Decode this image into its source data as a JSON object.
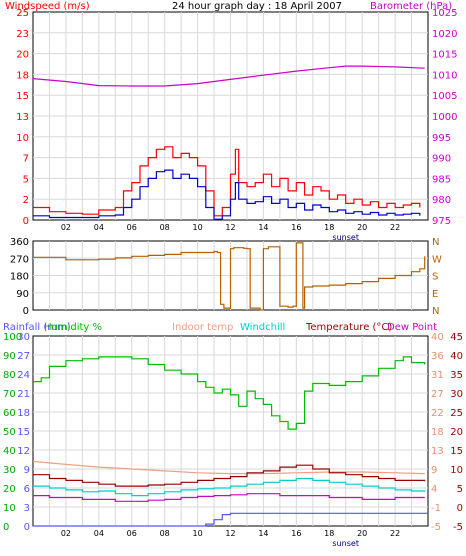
{
  "header": {
    "title": "24 hour graph day : 18 April 2007",
    "left_label": "Windspeed (m/s)",
    "right_label": "Barometer (hPa)"
  },
  "colors": {
    "windspeed": "#ff0000",
    "windavg": "#0000cc",
    "barometer": "#cc00cc",
    "direction": "#b85f00",
    "rainfall": "#5555ff",
    "humidity": "#00bb00",
    "indoor": "#f0a080",
    "windchill": "#00cccc",
    "temperature": "#990000",
    "dewpoint": "#cc00cc",
    "sunset_line": "#00008b"
  },
  "chart_data": [
    {
      "type": "line",
      "name": "wind-barometer",
      "title": "24 hour graph day : 18 April 2007",
      "ylabel_left": "Windspeed (m/s)",
      "ylabel_right": "Barometer (hPa)",
      "xticks": [
        "02",
        "04",
        "06",
        "08",
        "10",
        "12",
        "14",
        "16",
        "18",
        "20",
        "22"
      ],
      "xlim": [
        0,
        24
      ],
      "ylim_left": [
        0,
        25
      ],
      "ylim_right": [
        975,
        1025
      ],
      "yticks_left": [
        "0",
        "2",
        "5",
        "7",
        "10",
        "13",
        "15",
        "18",
        "20",
        "23",
        "25"
      ],
      "yticks_right": [
        "975",
        "980",
        "985",
        "990",
        "995",
        "1000",
        "1005",
        "1010",
        "1015",
        "1020",
        "1025"
      ],
      "annotation": "sunset",
      "series": [
        {
          "x": [
            0,
            1,
            2,
            3,
            4,
            5,
            5.5,
            6,
            6.5,
            7,
            7.5,
            8,
            8.5,
            9,
            9.5,
            10,
            10.5,
            11,
            11.5,
            12,
            12.3,
            12.5,
            13,
            13.5,
            14,
            14.5,
            15,
            15.5,
            16,
            16.5,
            17,
            17.5,
            18,
            18.5,
            19,
            19.5,
            20,
            20.5,
            21,
            21.5,
            22,
            22.5,
            23,
            23.5
          ],
          "y": [
            1.5,
            1.0,
            0.8,
            0.7,
            1.2,
            1.5,
            3.5,
            4.5,
            6.5,
            7.5,
            8.5,
            8.8,
            7.5,
            8.0,
            7.5,
            6.5,
            3.5,
            0.5,
            1.5,
            5.5,
            8.5,
            4.5,
            4.0,
            4.5,
            5.5,
            4.0,
            5.0,
            3.5,
            4.5,
            3.0,
            4.0,
            3.5,
            2.5,
            3.0,
            2.0,
            2.5,
            1.8,
            2.2,
            1.5,
            2.0,
            1.5,
            1.8,
            2.0,
            1.5
          ]
        },
        {
          "x": [
            0,
            1,
            2,
            3,
            4,
            5,
            5.5,
            6,
            6.5,
            7,
            7.5,
            8,
            8.5,
            9,
            9.5,
            10,
            10.5,
            11,
            11.5,
            12,
            12.3,
            12.5,
            13,
            13.5,
            14,
            14.5,
            15,
            15.5,
            16,
            16.5,
            17,
            17.5,
            18,
            18.5,
            19,
            19.5,
            20,
            20.5,
            21,
            21.5,
            22,
            22.5,
            23,
            23.5
          ],
          "y": [
            0.5,
            0.3,
            0.3,
            0.3,
            0.5,
            0.6,
            1.5,
            2.5,
            4.0,
            5.0,
            5.8,
            6.0,
            5.0,
            5.5,
            5.0,
            4.0,
            1.5,
            0.1,
            0.5,
            2.5,
            4.5,
            2.5,
            2.0,
            2.2,
            2.8,
            2.0,
            2.5,
            1.5,
            2.0,
            1.2,
            1.8,
            1.5,
            1.0,
            1.2,
            0.8,
            1.0,
            0.7,
            0.9,
            0.6,
            0.8,
            0.6,
            0.7,
            0.8,
            0.5
          ]
        },
        {
          "x": [
            0,
            2,
            4,
            6,
            8,
            10,
            12,
            14,
            16,
            18,
            19,
            20,
            22,
            23.8
          ],
          "y": [
            1009.0,
            1008.3,
            1007.3,
            1007.2,
            1007.2,
            1007.8,
            1008.8,
            1009.8,
            1010.8,
            1011.6,
            1012.0,
            1012.0,
            1011.8,
            1011.5
          ]
        }
      ]
    },
    {
      "type": "line",
      "name": "wind-direction",
      "xlim": [
        0,
        24
      ],
      "ylim_left": [
        0,
        360
      ],
      "yticks_left": [
        "0",
        "90",
        "180",
        "270",
        "360"
      ],
      "yticks_right": [
        "N",
        "E",
        "S",
        "W",
        "N"
      ],
      "series": [
        {
          "x": [
            0,
            2,
            4,
            5,
            6,
            7,
            8,
            9,
            10,
            11,
            11.2,
            11.4,
            11.6,
            12,
            12,
            12.2,
            12.5,
            12.8,
            13.0,
            13.2,
            13.8,
            14.0,
            14.3,
            15.0,
            15.5,
            15.8,
            16.0,
            16.1,
            16.4,
            16.5,
            17,
            18,
            19,
            20,
            21,
            22,
            23,
            23.5,
            23.8
          ],
          "y": [
            275,
            262,
            265,
            272,
            280,
            285,
            290,
            300,
            300,
            305,
            300,
            30,
            10,
            5,
            320,
            325,
            325,
            322,
            320,
            10,
            0,
            320,
            330,
            20,
            15,
            20,
            350,
            350,
            10,
            120,
            125,
            130,
            138,
            148,
            165,
            180,
            200,
            215,
            280
          ]
        }
      ]
    },
    {
      "type": "line",
      "name": "temperature-humidity",
      "legend": [
        "Rainfall (mm)",
        "Humidity %",
        "Indoor temp",
        "Windchill",
        "Temperature (°C)",
        "Dew Point"
      ],
      "xlim": [
        0,
        24
      ],
      "yticks_left_rain": [
        "0",
        "3",
        "6",
        "9",
        "12",
        "15",
        "18",
        "21",
        "24",
        "27",
        "30"
      ],
      "yticks_left_humidity": [
        "0",
        "10",
        "20",
        "30",
        "40",
        "50",
        "60",
        "70",
        "80",
        "90",
        "100"
      ],
      "yticks_right_indoor": [
        "-5",
        "-1",
        "4",
        "9",
        "13",
        "18",
        "22",
        "27",
        "31",
        "36",
        "40"
      ],
      "yticks_right_temp": [
        "-5",
        "0",
        "5",
        "10",
        "15",
        "20",
        "25",
        "30",
        "35",
        "40",
        "45"
      ],
      "ylim_rain": [
        0,
        30
      ],
      "ylim_humidity": [
        0,
        100
      ],
      "ylim_temp": [
        -5,
        45
      ],
      "annotation": "sunset",
      "series": [
        {
          "name": "Rainfall (mm)",
          "x": [
            0,
            9.2,
            10.5,
            11.0,
            11.5,
            12.0,
            24
          ],
          "y": [
            0,
            0,
            0.3,
            1.0,
            1.8,
            2.0,
            2.0
          ]
        },
        {
          "name": "Humidity %",
          "x": [
            0,
            0.5,
            1,
            2,
            3,
            4,
            5,
            6,
            7,
            8,
            9,
            10,
            10.5,
            11,
            11.5,
            12,
            12.5,
            13,
            13.5,
            14,
            14.5,
            15,
            15.5,
            16,
            16.5,
            17,
            18,
            19,
            20,
            21,
            22,
            22.5,
            23,
            23.8
          ],
          "y": [
            76,
            78,
            84,
            87,
            88,
            89,
            89,
            88,
            85,
            82,
            80,
            76,
            73,
            70,
            72,
            69,
            63,
            71,
            67,
            64,
            58,
            55,
            51,
            54,
            71,
            75,
            74,
            76,
            79,
            83,
            87,
            89,
            86,
            85
          ]
        },
        {
          "name": "Indoor temp",
          "x": [
            0,
            2,
            4,
            6,
            8,
            10,
            12,
            14,
            16,
            18,
            20,
            22,
            23.8
          ],
          "y": [
            12.0,
            11.2,
            10.5,
            10.0,
            9.5,
            9.0,
            8.8,
            8.8,
            9.0,
            9.2,
            9.2,
            9.0,
            8.8
          ]
        },
        {
          "name": "Windchill",
          "x": [
            0,
            1,
            2,
            3,
            4,
            5,
            6,
            7,
            8,
            9,
            10,
            11,
            12,
            13,
            14,
            15,
            16,
            17,
            18,
            19,
            20,
            21,
            22,
            23,
            23.8
          ],
          "y": [
            5.5,
            5.0,
            4.5,
            4.0,
            4.2,
            3.5,
            3.0,
            3.5,
            4.0,
            4.5,
            4.8,
            5.0,
            5.5,
            6.0,
            6.5,
            7.0,
            7.5,
            7.0,
            6.5,
            6.0,
            5.5,
            5.0,
            4.5,
            4.2,
            4.0
          ]
        },
        {
          "name": "Temperature (°C)",
          "x": [
            0,
            1,
            2,
            3,
            4,
            5,
            6,
            7,
            8,
            9,
            10,
            11,
            12,
            13,
            14,
            15,
            16,
            17,
            18,
            19,
            20,
            21,
            22,
            23,
            23.8
          ],
          "y": [
            8.5,
            7.5,
            7.0,
            6.5,
            6.0,
            5.5,
            5.5,
            5.8,
            6.0,
            6.5,
            7.0,
            7.5,
            8.0,
            9.0,
            9.5,
            10.5,
            11.0,
            10.0,
            9.0,
            8.5,
            8.0,
            7.5,
            7.0,
            7.0,
            6.8
          ]
        },
        {
          "name": "Dew Point",
          "x": [
            0,
            1,
            2,
            3,
            4,
            5,
            6,
            7,
            8,
            9,
            10,
            11,
            12,
            13,
            14,
            15,
            16,
            17,
            18,
            19,
            20,
            21,
            22,
            23,
            23.8
          ],
          "y": [
            3.0,
            2.5,
            2.5,
            2.0,
            2.0,
            1.5,
            1.5,
            1.8,
            2.0,
            2.5,
            2.8,
            3.0,
            3.2,
            3.5,
            3.5,
            3.0,
            3.0,
            3.0,
            2.5,
            2.5,
            2.0,
            2.0,
            2.5,
            2.5,
            2.5
          ]
        }
      ]
    }
  ]
}
